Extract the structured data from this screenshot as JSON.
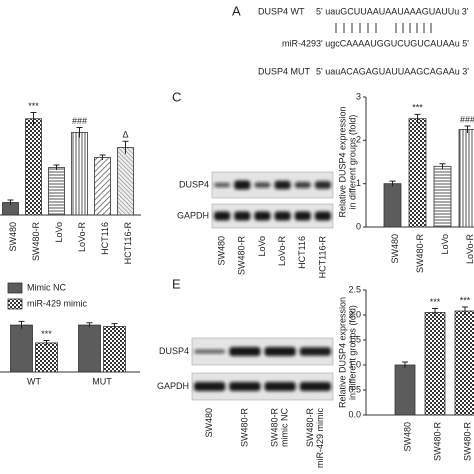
{
  "panel_a": {
    "label": "A",
    "rows": [
      {
        "name": "DUSP4 WT",
        "seq": "5'  uauGCUUAAUAAUAAAGUAUUu  3'"
      },
      {
        "name": "miR-429",
        "seq": "3'  ugcCAAAAUGGUCUGUCAUAAu  5'"
      },
      {
        "name": "DUSP4 MUT",
        "seq": "5'  uauACAGAGUAUUAAGCAGAAu  3'"
      }
    ]
  },
  "blots": [
    {
      "label": "C",
      "rows": [
        "DUSP4",
        "GAPDH"
      ],
      "lanes": [
        [
          "SW480"
        ],
        [
          "SW480-R"
        ],
        [
          "LoVo"
        ],
        [
          "LoVo-R"
        ],
        [
          "HCT116"
        ],
        [
          "HCT116-R"
        ]
      ]
    },
    {
      "label": "E",
      "rows": [
        "DUSP4",
        "GAPDH"
      ],
      "lanes": [
        [
          "SW480"
        ],
        [
          "SW480-R"
        ],
        [
          "SW480-R",
          "mimic NC"
        ],
        [
          "SW480-R",
          "miR-429 mimic"
        ]
      ]
    }
  ],
  "chart_data": [
    {
      "type": "bar",
      "categories": [
        "SW480",
        "SW480-R",
        "LoVo",
        "LoVo-R",
        "HCT116",
        "HCT116-R"
      ],
      "values": [
        10,
        77,
        38,
        66,
        46,
        54
      ],
      "errors": [
        2,
        5,
        2,
        4,
        2,
        5
      ],
      "annotations": [
        null,
        "***",
        null,
        "###",
        null,
        "Δ"
      ],
      "patterns": [
        "solid",
        "checker",
        "hlines",
        "vlines",
        "diag",
        "dense"
      ],
      "ylim": [
        0,
        100
      ]
    },
    {
      "type": "bar",
      "ylabel": [
        "Relative DUSP4 expression",
        "in different groups (fold)"
      ],
      "categories": [
        "SW480",
        "SW480-R",
        "LoVo",
        "LoVo-R"
      ],
      "values": [
        1.0,
        2.5,
        1.4,
        2.25
      ],
      "errors": [
        0.06,
        0.1,
        0.06,
        0.08
      ],
      "annotations": [
        null,
        "***",
        null,
        "###"
      ],
      "patterns": [
        "solid",
        "checker",
        "hlines",
        "vlines"
      ],
      "ylim": [
        0,
        3
      ],
      "yticks": [
        0,
        1,
        2,
        3
      ]
    },
    {
      "type": "grouped_bar",
      "categories": [
        "WT",
        "MUT"
      ],
      "ylim": [
        0,
        1.3
      ],
      "series": [
        {
          "name": "Mimic NC",
          "pattern": "solid",
          "values": [
            1.0,
            1.0
          ],
          "errors": [
            0.08,
            0.05
          ],
          "annotations": [
            null,
            null
          ]
        },
        {
          "name": "miR-429 mimic",
          "pattern": "checker",
          "values": [
            0.62,
            0.97
          ],
          "errors": [
            0.05,
            0.06
          ],
          "annotations": [
            "***",
            null
          ]
        }
      ]
    },
    {
      "type": "bar",
      "ylabel": [
        "Relative DUSP4 expression",
        "in different groups (fold)"
      ],
      "categories": [
        "SW480",
        "SW480-R",
        "SW480-R"
      ],
      "values": [
        1.0,
        2.05,
        2.08
      ],
      "errors": [
        0.06,
        0.08,
        0.08
      ],
      "annotations": [
        null,
        "***",
        "***"
      ],
      "patterns": [
        "solid",
        "checker",
        "checker"
      ],
      "ylim": [
        0,
        2.5
      ],
      "yticks": [
        {
          "value": 0,
          "label": "0.0"
        },
        0.5,
        {
          "value": 1,
          "label": "1.0"
        },
        1.5,
        {
          "value": 2,
          "label": "2.0"
        },
        2.5
      ]
    }
  ]
}
